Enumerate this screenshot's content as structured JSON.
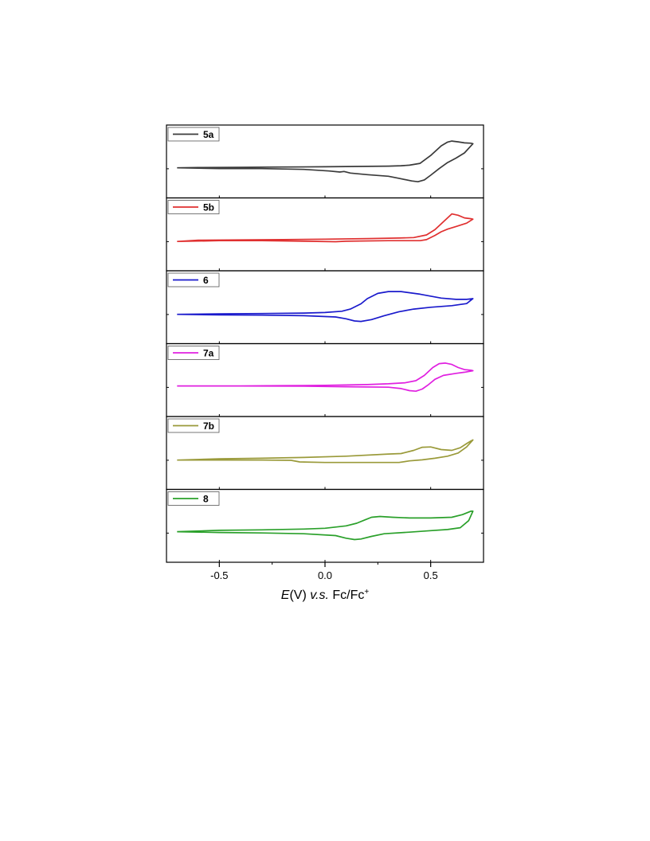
{
  "chart_data": {
    "type": "line",
    "xlabel": {
      "italic_symbol": "E",
      "unit": "(V) ",
      "italic_mid": "v.s.",
      "rest": " Fc/Fc",
      "superscript": "+"
    },
    "xlim": [
      -0.75,
      0.75
    ],
    "xticks": [
      {
        "value": -0.5,
        "label": "-0.5"
      },
      {
        "value": 0.0,
        "label": "0.0"
      },
      {
        "value": 0.5,
        "label": "0.5"
      }
    ],
    "grid": false,
    "legend_placement": "top-left",
    "series": [
      {
        "name": "5a",
        "color": "#3a3a3a",
        "forward": [
          [
            -0.7,
            -0.02
          ],
          [
            -0.6,
            -0.01
          ],
          [
            -0.4,
            0.0
          ],
          [
            -0.2,
            0.01
          ],
          [
            0.0,
            0.02
          ],
          [
            0.2,
            0.035
          ],
          [
            0.3,
            0.045
          ],
          [
            0.36,
            0.06
          ],
          [
            0.4,
            0.08
          ],
          [
            0.45,
            0.15
          ],
          [
            0.5,
            0.45
          ],
          [
            0.55,
            0.82
          ],
          [
            0.58,
            0.96
          ],
          [
            0.6,
            1.0
          ],
          [
            0.63,
            0.97
          ],
          [
            0.66,
            0.93
          ],
          [
            0.69,
            0.92
          ],
          [
            0.7,
            0.9
          ]
        ],
        "reverse": [
          [
            0.7,
            0.9
          ],
          [
            0.66,
            0.55
          ],
          [
            0.62,
            0.35
          ],
          [
            0.58,
            0.18
          ],
          [
            0.54,
            -0.05
          ],
          [
            0.5,
            -0.3
          ],
          [
            0.47,
            -0.48
          ],
          [
            0.44,
            -0.55
          ],
          [
            0.41,
            -0.52
          ],
          [
            0.35,
            -0.42
          ],
          [
            0.3,
            -0.34
          ],
          [
            0.2,
            -0.28
          ],
          [
            0.12,
            -0.22
          ],
          [
            0.09,
            -0.16
          ],
          [
            0.07,
            -0.18
          ],
          [
            0.02,
            -0.14
          ],
          [
            -0.1,
            -0.08
          ],
          [
            -0.3,
            -0.05
          ],
          [
            -0.5,
            -0.05
          ],
          [
            -0.7,
            -0.02
          ]
        ]
      },
      {
        "name": "5b",
        "color": "#e03030",
        "forward": [
          [
            -0.7,
            -0.05
          ],
          [
            -0.6,
            0.0
          ],
          [
            -0.4,
            0.01
          ],
          [
            -0.2,
            0.02
          ],
          [
            0.0,
            0.04
          ],
          [
            0.2,
            0.06
          ],
          [
            0.35,
            0.08
          ],
          [
            0.42,
            0.1
          ],
          [
            0.48,
            0.2
          ],
          [
            0.52,
            0.4
          ],
          [
            0.56,
            0.7
          ],
          [
            0.6,
            1.0
          ],
          [
            0.63,
            0.95
          ],
          [
            0.66,
            0.85
          ],
          [
            0.69,
            0.82
          ],
          [
            0.7,
            0.8
          ]
        ],
        "reverse": [
          [
            0.7,
            0.8
          ],
          [
            0.67,
            0.65
          ],
          [
            0.62,
            0.52
          ],
          [
            0.58,
            0.42
          ],
          [
            0.55,
            0.32
          ],
          [
            0.52,
            0.18
          ],
          [
            0.48,
            0.02
          ],
          [
            0.45,
            -0.02
          ],
          [
            0.3,
            -0.02
          ],
          [
            0.1,
            -0.04
          ],
          [
            0.05,
            -0.06
          ],
          [
            -0.1,
            -0.04
          ],
          [
            -0.3,
            -0.02
          ],
          [
            -0.5,
            -0.02
          ],
          [
            -0.7,
            -0.05
          ]
        ]
      },
      {
        "name": "6",
        "color": "#1a1acc",
        "forward": [
          [
            -0.7,
            -0.05
          ],
          [
            -0.5,
            -0.03
          ],
          [
            -0.3,
            -0.02
          ],
          [
            -0.1,
            0.0
          ],
          [
            0.0,
            0.02
          ],
          [
            0.08,
            0.07
          ],
          [
            0.12,
            0.15
          ],
          [
            0.17,
            0.35
          ],
          [
            0.2,
            0.55
          ],
          [
            0.25,
            0.75
          ],
          [
            0.3,
            0.82
          ],
          [
            0.36,
            0.82
          ],
          [
            0.45,
            0.72
          ],
          [
            0.55,
            0.57
          ],
          [
            0.62,
            0.52
          ],
          [
            0.67,
            0.52
          ],
          [
            0.7,
            0.55
          ]
        ],
        "reverse": [
          [
            0.7,
            0.55
          ],
          [
            0.67,
            0.36
          ],
          [
            0.6,
            0.28
          ],
          [
            0.5,
            0.22
          ],
          [
            0.42,
            0.15
          ],
          [
            0.35,
            0.05
          ],
          [
            0.28,
            -0.1
          ],
          [
            0.22,
            -0.25
          ],
          [
            0.17,
            -0.32
          ],
          [
            0.14,
            -0.3
          ],
          [
            0.1,
            -0.22
          ],
          [
            0.05,
            -0.15
          ],
          [
            -0.1,
            -0.1
          ],
          [
            -0.3,
            -0.08
          ],
          [
            -0.5,
            -0.07
          ],
          [
            -0.7,
            -0.05
          ]
        ]
      },
      {
        "name": "7a",
        "color": "#e020e0",
        "forward": [
          [
            -0.7,
            0.0
          ],
          [
            -0.4,
            0.0
          ],
          [
            -0.2,
            0.01
          ],
          [
            0.0,
            0.02
          ],
          [
            0.2,
            0.05
          ],
          [
            0.3,
            0.08
          ],
          [
            0.38,
            0.12
          ],
          [
            0.43,
            0.2
          ],
          [
            0.47,
            0.4
          ],
          [
            0.51,
            0.7
          ],
          [
            0.54,
            0.85
          ],
          [
            0.57,
            0.87
          ],
          [
            0.6,
            0.82
          ],
          [
            0.63,
            0.7
          ],
          [
            0.66,
            0.62
          ],
          [
            0.69,
            0.6
          ],
          [
            0.7,
            0.58
          ]
        ],
        "reverse": [
          [
            0.7,
            0.58
          ],
          [
            0.66,
            0.52
          ],
          [
            0.62,
            0.48
          ],
          [
            0.56,
            0.4
          ],
          [
            0.52,
            0.25
          ],
          [
            0.49,
            0.05
          ],
          [
            0.46,
            -0.12
          ],
          [
            0.43,
            -0.2
          ],
          [
            0.4,
            -0.18
          ],
          [
            0.36,
            -0.1
          ],
          [
            0.3,
            -0.05
          ],
          [
            0.1,
            -0.03
          ],
          [
            -0.1,
            -0.01
          ],
          [
            -0.4,
            0.0
          ],
          [
            -0.7,
            0.0
          ]
        ]
      },
      {
        "name": "7b",
        "color": "#9a9a3a",
        "forward": [
          [
            -0.7,
            -0.05
          ],
          [
            -0.5,
            0.0
          ],
          [
            -0.3,
            0.02
          ],
          [
            -0.1,
            0.05
          ],
          [
            0.1,
            0.1
          ],
          [
            0.3,
            0.18
          ],
          [
            0.36,
            0.2
          ],
          [
            0.42,
            0.32
          ],
          [
            0.46,
            0.44
          ],
          [
            0.5,
            0.45
          ],
          [
            0.55,
            0.35
          ],
          [
            0.6,
            0.32
          ],
          [
            0.64,
            0.42
          ],
          [
            0.67,
            0.58
          ],
          [
            0.69,
            0.68
          ],
          [
            0.7,
            0.72
          ]
        ],
        "reverse": [
          [
            0.7,
            0.72
          ],
          [
            0.67,
            0.45
          ],
          [
            0.63,
            0.22
          ],
          [
            0.58,
            0.1
          ],
          [
            0.52,
            0.02
          ],
          [
            0.46,
            -0.04
          ],
          [
            0.4,
            -0.08
          ],
          [
            0.35,
            -0.14
          ],
          [
            0.2,
            -0.14
          ],
          [
            0.0,
            -0.14
          ],
          [
            -0.12,
            -0.12
          ],
          [
            -0.16,
            -0.06
          ],
          [
            -0.3,
            -0.05
          ],
          [
            -0.5,
            -0.05
          ],
          [
            -0.7,
            -0.05
          ]
        ]
      },
      {
        "name": "8",
        "color": "#2aa02a",
        "forward": [
          [
            -0.7,
            0.0
          ],
          [
            -0.5,
            0.05
          ],
          [
            -0.3,
            0.07
          ],
          [
            -0.1,
            0.1
          ],
          [
            0.0,
            0.13
          ],
          [
            0.1,
            0.22
          ],
          [
            0.15,
            0.32
          ],
          [
            0.19,
            0.45
          ],
          [
            0.22,
            0.55
          ],
          [
            0.26,
            0.58
          ],
          [
            0.32,
            0.55
          ],
          [
            0.4,
            0.52
          ],
          [
            0.5,
            0.52
          ],
          [
            0.6,
            0.55
          ],
          [
            0.65,
            0.65
          ],
          [
            0.69,
            0.78
          ],
          [
            0.7,
            0.78
          ]
        ],
        "reverse": [
          [
            0.7,
            0.78
          ],
          [
            0.68,
            0.42
          ],
          [
            0.64,
            0.15
          ],
          [
            0.58,
            0.08
          ],
          [
            0.5,
            0.04
          ],
          [
            0.4,
            -0.02
          ],
          [
            0.28,
            -0.08
          ],
          [
            0.22,
            -0.18
          ],
          [
            0.17,
            -0.28
          ],
          [
            0.14,
            -0.3
          ],
          [
            0.1,
            -0.25
          ],
          [
            0.05,
            -0.15
          ],
          [
            -0.1,
            -0.08
          ],
          [
            -0.3,
            -0.05
          ],
          [
            -0.5,
            -0.03
          ],
          [
            -0.7,
            0.0
          ]
        ]
      }
    ]
  }
}
